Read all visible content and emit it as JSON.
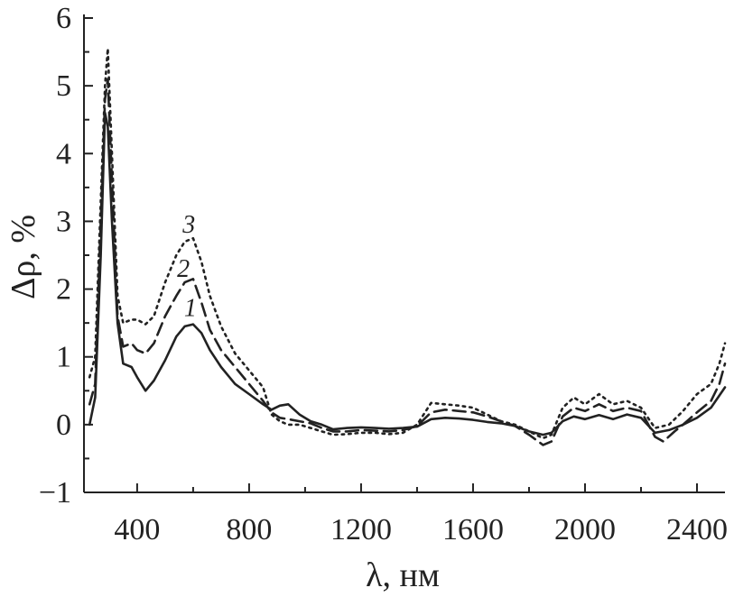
{
  "chart_data": {
    "type": "line",
    "xlabel": "λ, нм",
    "ylabel": "Δρ, %",
    "xlim": [
      210,
      2500
    ],
    "ylim": [
      -1,
      6
    ],
    "x_ticks": [
      400,
      800,
      1200,
      1600,
      2000,
      2400
    ],
    "y_ticks": [
      -1,
      0,
      1,
      2,
      3,
      4,
      5,
      6
    ],
    "x_tick_labels": [
      "400",
      "800",
      "1200",
      "1600",
      "2000",
      "2400"
    ],
    "y_tick_labels": [
      "−1",
      "0",
      "1",
      "2",
      "3",
      "4",
      "5",
      "6"
    ],
    "grid": false,
    "series": [
      {
        "name": "1",
        "style": "solid",
        "points": [
          [
            230,
            0.0
          ],
          [
            250,
            0.4
          ],
          [
            270,
            2.5
          ],
          [
            285,
            4.6
          ],
          [
            295,
            4.4
          ],
          [
            310,
            3.0
          ],
          [
            330,
            1.5
          ],
          [
            350,
            0.9
          ],
          [
            380,
            0.85
          ],
          [
            400,
            0.7
          ],
          [
            430,
            0.5
          ],
          [
            460,
            0.65
          ],
          [
            500,
            0.95
          ],
          [
            540,
            1.3
          ],
          [
            570,
            1.45
          ],
          [
            600,
            1.48
          ],
          [
            630,
            1.35
          ],
          [
            660,
            1.1
          ],
          [
            700,
            0.85
          ],
          [
            750,
            0.6
          ],
          [
            800,
            0.45
          ],
          [
            850,
            0.3
          ],
          [
            880,
            0.22
          ],
          [
            910,
            0.28
          ],
          [
            940,
            0.3
          ],
          [
            980,
            0.15
          ],
          [
            1020,
            0.05
          ],
          [
            1060,
            0.0
          ],
          [
            1100,
            -0.07
          ],
          [
            1150,
            -0.05
          ],
          [
            1200,
            -0.04
          ],
          [
            1250,
            -0.05
          ],
          [
            1300,
            -0.06
          ],
          [
            1350,
            -0.05
          ],
          [
            1400,
            -0.03
          ],
          [
            1450,
            0.08
          ],
          [
            1500,
            0.1
          ],
          [
            1550,
            0.09
          ],
          [
            1600,
            0.07
          ],
          [
            1650,
            0.04
          ],
          [
            1700,
            0.02
          ],
          [
            1750,
            -0.02
          ],
          [
            1800,
            -0.1
          ],
          [
            1850,
            -0.15
          ],
          [
            1880,
            -0.12
          ],
          [
            1920,
            0.05
          ],
          [
            1960,
            0.12
          ],
          [
            2000,
            0.08
          ],
          [
            2050,
            0.14
          ],
          [
            2100,
            0.08
          ],
          [
            2150,
            0.15
          ],
          [
            2200,
            0.1
          ],
          [
            2250,
            -0.12
          ],
          [
            2300,
            -0.08
          ],
          [
            2350,
            0.0
          ],
          [
            2400,
            0.1
          ],
          [
            2450,
            0.25
          ],
          [
            2500,
            0.55
          ]
        ]
      },
      {
        "name": "2",
        "style": "dashed",
        "points": [
          [
            230,
            0.3
          ],
          [
            250,
            0.6
          ],
          [
            270,
            3.0
          ],
          [
            285,
            4.8
          ],
          [
            295,
            5.1
          ],
          [
            310,
            3.6
          ],
          [
            330,
            1.6
          ],
          [
            350,
            1.15
          ],
          [
            380,
            1.2
          ],
          [
            400,
            1.1
          ],
          [
            430,
            1.05
          ],
          [
            460,
            1.2
          ],
          [
            500,
            1.6
          ],
          [
            540,
            1.9
          ],
          [
            570,
            2.1
          ],
          [
            600,
            2.15
          ],
          [
            630,
            1.8
          ],
          [
            660,
            1.4
          ],
          [
            700,
            1.1
          ],
          [
            750,
            0.85
          ],
          [
            800,
            0.6
          ],
          [
            850,
            0.35
          ],
          [
            880,
            0.18
          ],
          [
            910,
            0.1
          ],
          [
            940,
            0.08
          ],
          [
            980,
            0.05
          ],
          [
            1020,
            0.02
          ],
          [
            1060,
            -0.05
          ],
          [
            1100,
            -0.1
          ],
          [
            1150,
            -0.1
          ],
          [
            1200,
            -0.08
          ],
          [
            1250,
            -0.09
          ],
          [
            1300,
            -0.1
          ],
          [
            1350,
            -0.08
          ],
          [
            1400,
            -0.02
          ],
          [
            1450,
            0.18
          ],
          [
            1500,
            0.22
          ],
          [
            1550,
            0.2
          ],
          [
            1600,
            0.18
          ],
          [
            1650,
            0.12
          ],
          [
            1700,
            0.05
          ],
          [
            1750,
            -0.02
          ],
          [
            1800,
            -0.15
          ],
          [
            1850,
            -0.3
          ],
          [
            1880,
            -0.25
          ],
          [
            1920,
            0.12
          ],
          [
            1960,
            0.25
          ],
          [
            2000,
            0.2
          ],
          [
            2050,
            0.3
          ],
          [
            2100,
            0.2
          ],
          [
            2150,
            0.25
          ],
          [
            2200,
            0.2
          ],
          [
            2250,
            -0.18
          ],
          [
            2280,
            -0.25
          ],
          [
            2320,
            -0.1
          ],
          [
            2350,
            0.0
          ],
          [
            2400,
            0.18
          ],
          [
            2450,
            0.35
          ],
          [
            2480,
            0.6
          ],
          [
            2500,
            0.9
          ]
        ]
      },
      {
        "name": "3",
        "style": "dotted",
        "points": [
          [
            230,
            0.7
          ],
          [
            250,
            1.0
          ],
          [
            270,
            3.3
          ],
          [
            285,
            5.0
          ],
          [
            295,
            5.55
          ],
          [
            310,
            4.0
          ],
          [
            330,
            1.9
          ],
          [
            350,
            1.5
          ],
          [
            380,
            1.55
          ],
          [
            400,
            1.55
          ],
          [
            430,
            1.48
          ],
          [
            460,
            1.6
          ],
          [
            500,
            2.1
          ],
          [
            540,
            2.5
          ],
          [
            570,
            2.7
          ],
          [
            600,
            2.75
          ],
          [
            630,
            2.4
          ],
          [
            660,
            1.9
          ],
          [
            700,
            1.45
          ],
          [
            750,
            1.05
          ],
          [
            800,
            0.8
          ],
          [
            850,
            0.55
          ],
          [
            880,
            0.15
          ],
          [
            910,
            0.05
          ],
          [
            940,
            0.0
          ],
          [
            980,
            0.0
          ],
          [
            1020,
            -0.05
          ],
          [
            1060,
            -0.1
          ],
          [
            1100,
            -0.15
          ],
          [
            1150,
            -0.14
          ],
          [
            1200,
            -0.12
          ],
          [
            1250,
            -0.12
          ],
          [
            1300,
            -0.14
          ],
          [
            1350,
            -0.12
          ],
          [
            1400,
            0.0
          ],
          [
            1450,
            0.32
          ],
          [
            1500,
            0.3
          ],
          [
            1550,
            0.28
          ],
          [
            1600,
            0.25
          ],
          [
            1650,
            0.15
          ],
          [
            1700,
            0.05
          ],
          [
            1750,
            0.0
          ],
          [
            1800,
            -0.1
          ],
          [
            1850,
            -0.2
          ],
          [
            1880,
            -0.15
          ],
          [
            1920,
            0.25
          ],
          [
            1960,
            0.4
          ],
          [
            2000,
            0.3
          ],
          [
            2050,
            0.45
          ],
          [
            2100,
            0.3
          ],
          [
            2150,
            0.35
          ],
          [
            2200,
            0.25
          ],
          [
            2250,
            -0.05
          ],
          [
            2300,
            0.0
          ],
          [
            2350,
            0.2
          ],
          [
            2400,
            0.45
          ],
          [
            2450,
            0.6
          ],
          [
            2480,
            0.9
          ],
          [
            2500,
            1.2
          ]
        ]
      }
    ],
    "curve_labels": [
      {
        "text": "1",
        "x": 590,
        "y": 1.6
      },
      {
        "text": "2",
        "x": 565,
        "y": 2.18
      },
      {
        "text": "3",
        "x": 585,
        "y": 2.83
      }
    ]
  }
}
